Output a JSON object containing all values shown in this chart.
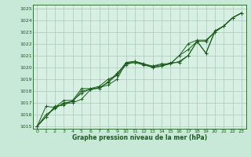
{
  "xlabel": "Graphe pression niveau de la mer (hPa)",
  "ylim": [
    1014.8,
    1025.3
  ],
  "xlim": [
    -0.5,
    23.5
  ],
  "yticks": [
    1015,
    1016,
    1017,
    1018,
    1019,
    1020,
    1021,
    1022,
    1023,
    1024,
    1025
  ],
  "xticks": [
    0,
    1,
    2,
    3,
    4,
    5,
    6,
    7,
    8,
    9,
    10,
    11,
    12,
    13,
    14,
    15,
    16,
    17,
    18,
    19,
    20,
    21,
    22,
    23
  ],
  "bg_color": "#c8e8d8",
  "plot_bg_color": "#d8f0e4",
  "grid_color": "#a8c8b8",
  "line_color": "#1a5c1a",
  "figsize": [
    3.2,
    2.0
  ],
  "dpi": 100,
  "line1": [
    1015.0,
    1015.8,
    1016.6,
    1016.9,
    1017.0,
    1017.3,
    1018.1,
    1018.3,
    1018.5,
    1019.0,
    1020.4,
    1020.5,
    1020.2,
    1020.0,
    1020.1,
    1020.4,
    1020.4,
    1021.0,
    1022.2,
    1021.2,
    1023.0,
    1023.5,
    1024.2,
    1024.6
  ],
  "line2": [
    1015.0,
    1015.8,
    1016.7,
    1016.8,
    1017.2,
    1017.8,
    1018.2,
    1018.4,
    1019.0,
    1019.3,
    1020.2,
    1020.5,
    1020.3,
    1020.1,
    1020.2,
    1020.3,
    1020.5,
    1021.0,
    1022.2,
    1021.2,
    1023.1,
    1023.5,
    1024.2,
    1024.6
  ],
  "line3": [
    1015.0,
    1016.0,
    1016.5,
    1017.0,
    1017.1,
    1018.0,
    1018.1,
    1018.3,
    1018.7,
    1019.4,
    1020.4,
    1020.5,
    1020.3,
    1020.0,
    1020.1,
    1020.3,
    1021.0,
    1021.5,
    1022.2,
    1022.2,
    1023.0,
    1023.5,
    1024.2,
    1024.6
  ],
  "line4": [
    1015.0,
    1016.7,
    1016.6,
    1017.2,
    1017.2,
    1018.2,
    1018.2,
    1018.2,
    1018.8,
    1019.5,
    1020.3,
    1020.4,
    1020.2,
    1020.1,
    1020.3,
    1020.3,
    1021.0,
    1022.0,
    1022.3,
    1022.3,
    1023.0,
    1023.5,
    1024.2,
    1024.6
  ]
}
